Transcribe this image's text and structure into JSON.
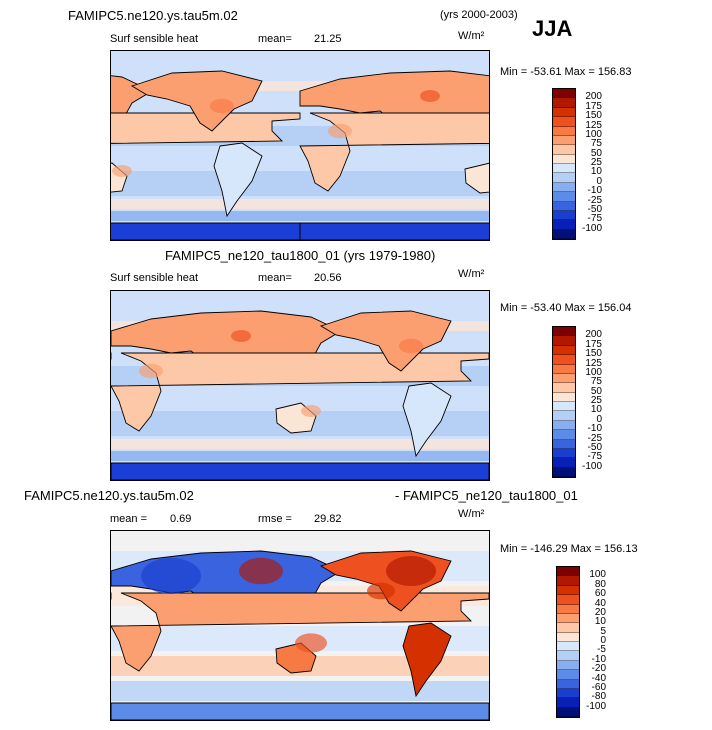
{
  "panel1": {
    "case": "FAMIPC5.ne120.ys.tau5m.02",
    "years": "(yrs 2000-2003)",
    "season": "JJA",
    "variable": "Surf sensible heat",
    "mean_label": "mean=",
    "mean_value": "21.25",
    "units": "W/m²",
    "minmax": "Min = -53.61  Max = 156.83",
    "colorbar_labels": [
      "200",
      "175",
      "150",
      "125",
      "100",
      "75",
      "50",
      "25",
      "10",
      "0",
      "-10",
      "-25",
      "-50",
      "-75",
      "-100"
    ]
  },
  "panel2": {
    "title": "FAMIPC5_ne120_tau1800_01 (yrs 1979-1980)",
    "variable": "Surf sensible heat",
    "mean_label": "mean=",
    "mean_value": "20.56",
    "units": "W/m²",
    "minmax": "Min = -53.40  Max = 156.04",
    "colorbar_labels": [
      "200",
      "175",
      "150",
      "125",
      "100",
      "75",
      "50",
      "25",
      "10",
      "0",
      "-10",
      "-25",
      "-50",
      "-75",
      "-100"
    ]
  },
  "panel3": {
    "title_left": "FAMIPC5.ne120.ys.tau5m.02",
    "title_right": "- FAMIPC5_ne120_tau1800_01",
    "mean_label": "mean =",
    "mean_value": "0.69",
    "rmse_label": "rmse =",
    "rmse_value": "29.82",
    "units": "W/m²",
    "minmax": "Min = -146.29  Max = 156.13",
    "colorbar_labels": [
      "100",
      "80",
      "60",
      "40",
      "20",
      "10",
      "5",
      "0",
      "-5",
      "-10",
      "-20",
      "-40",
      "-60",
      "-80",
      "-100"
    ]
  },
  "colors": {
    "abs_scale": [
      "#7f0000",
      "#b01800",
      "#d53000",
      "#ee5020",
      "#f77a45",
      "#fb9e70",
      "#fdc8a8",
      "#fbe6d6",
      "#d6e6fb",
      "#b3cff5",
      "#86aef0",
      "#5c8ce8",
      "#3a63df",
      "#1a3fd0",
      "#0820b8",
      "#00107a"
    ],
    "diff_scale": [
      "#7f0000",
      "#b01800",
      "#d53000",
      "#ee5020",
      "#f77a45",
      "#fb9e70",
      "#fdc8a8",
      "#fbe6d6",
      "#d6e6fb",
      "#b3cff5",
      "#86aef0",
      "#5c8ce8",
      "#3a63df",
      "#1a3fd0",
      "#0820b8",
      "#00107a"
    ],
    "ocean_light": "#cfe0fa",
    "ocean_mid": "#aecbf4",
    "antarctic": "#1b3fd6",
    "coast": "#000000"
  }
}
